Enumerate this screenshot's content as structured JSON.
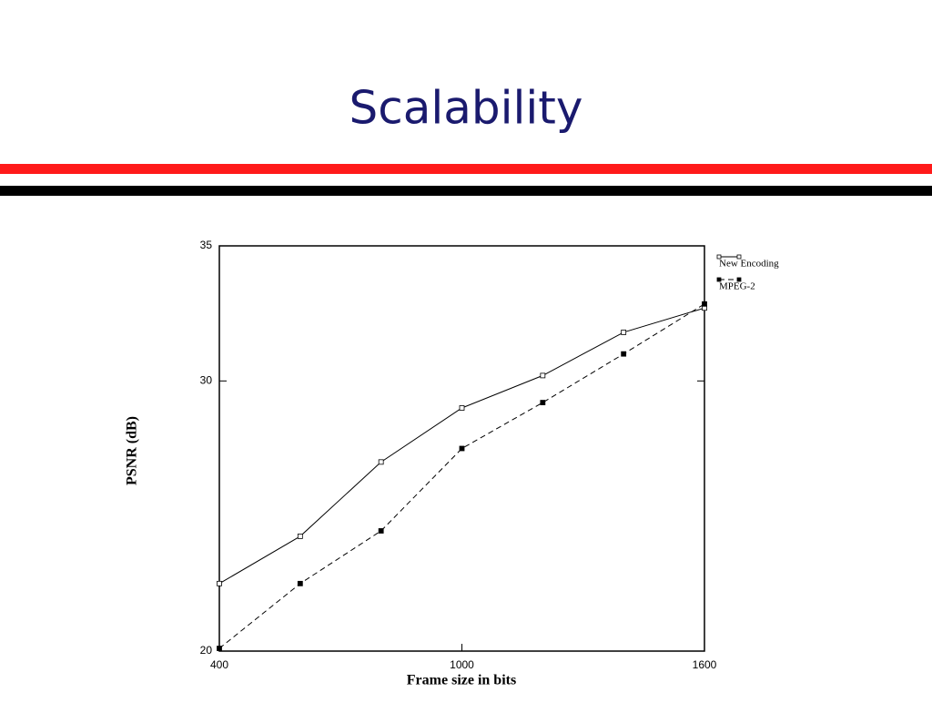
{
  "title": "Scalability",
  "chart_data": {
    "type": "line",
    "x_label": "Frame size in bits",
    "y_label": "PSNR (dB)",
    "x": [
      400,
      600,
      800,
      1000,
      1200,
      1400,
      1600
    ],
    "series": [
      {
        "name": "New Encoding",
        "color": "#000000",
        "line_style": "solid",
        "marker": "open",
        "values": [
          22.5,
          24.25,
          27.0,
          29.0,
          30.2,
          31.8,
          32.7
        ]
      },
      {
        "name": "MPEG-2",
        "color": "#000000",
        "line_style": "dashed",
        "marker": "filled",
        "values": [
          20.1,
          22.5,
          24.45,
          27.5,
          29.2,
          31.0,
          32.85
        ]
      }
    ],
    "xlim": [
      400,
      1600
    ],
    "xticks": [
      400,
      1000,
      1600
    ],
    "ylim": [
      20,
      35
    ],
    "yticks": [
      20,
      30,
      35
    ],
    "legend": "right"
  }
}
